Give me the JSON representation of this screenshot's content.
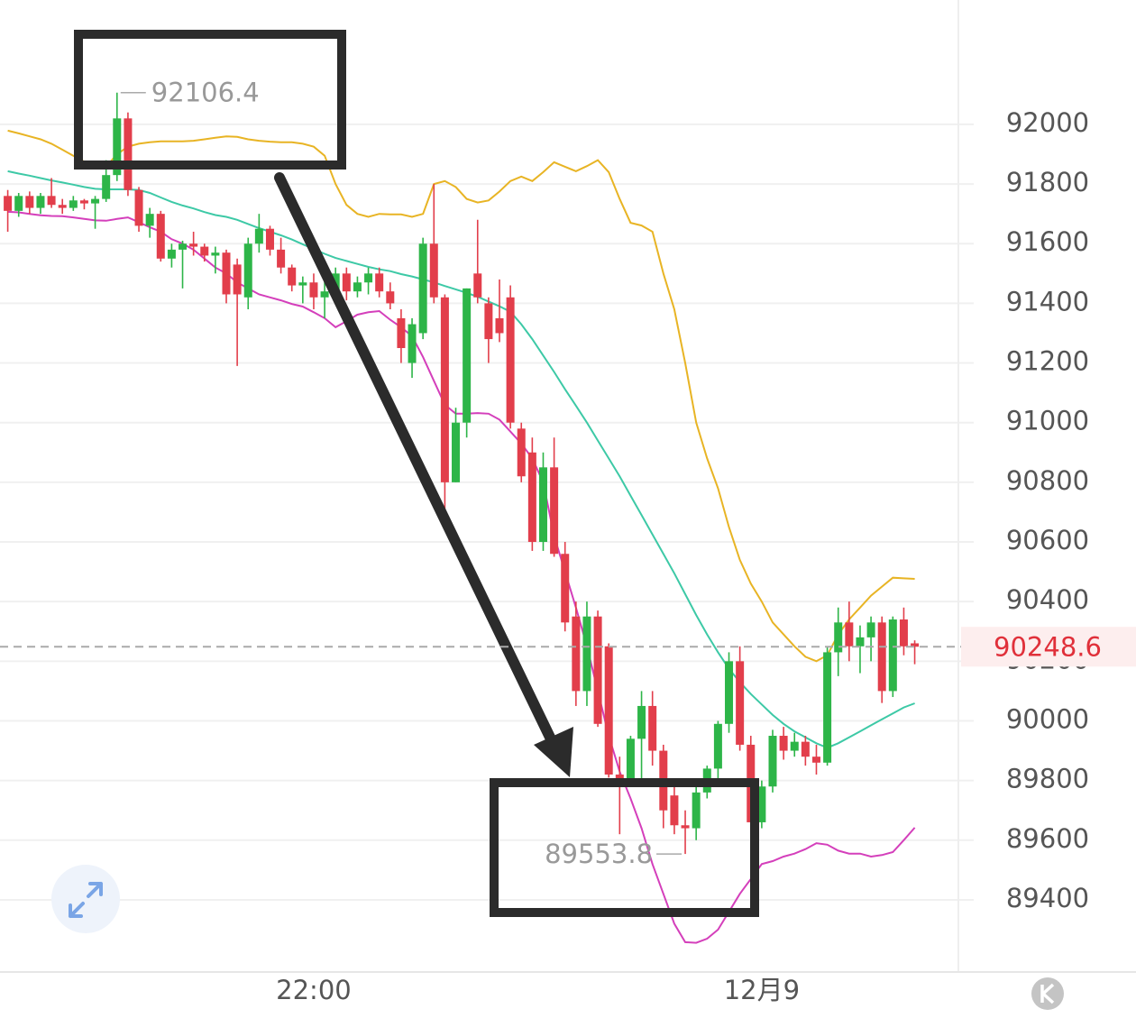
{
  "chart_data": {
    "type": "candlestick",
    "categories": [
      null,
      null,
      null,
      null,
      null,
      null,
      null,
      null,
      null,
      null,
      null,
      null,
      null,
      null,
      null,
      null,
      null,
      null,
      null,
      null,
      null,
      null,
      null,
      null,
      null,
      null,
      null,
      null,
      "22:00",
      null,
      null,
      null,
      null,
      null,
      null,
      null,
      null,
      null,
      null,
      null,
      null,
      null,
      null,
      null,
      null,
      null,
      null,
      null,
      null,
      null,
      null,
      null,
      null,
      null,
      null,
      null,
      null,
      null,
      null,
      null,
      null,
      null,
      null,
      null,
      null,
      null,
      null,
      null,
      null,
      "12月9",
      null,
      null,
      null,
      null,
      null,
      null,
      null,
      null,
      null,
      null,
      null,
      null,
      null,
      null
    ],
    "open": [
      91760,
      91710,
      91760,
      91720,
      91760,
      91730,
      91720,
      91745,
      91735,
      91750,
      91830,
      92020,
      91780,
      91660,
      91700,
      91550,
      91580,
      91600,
      91590,
      91560,
      91570,
      91530,
      91420,
      91600,
      91650,
      91580,
      91520,
      91460,
      91470,
      91420,
      91440,
      91500,
      91440,
      91470,
      91500,
      91440,
      91350,
      91200,
      91300,
      91600,
      91420,
      90800,
      91000,
      91500,
      91400,
      91350,
      91420,
      90980,
      90900,
      90600,
      90850,
      90560,
      90350,
      90100,
      90350,
      90250,
      89820,
      89800,
      89940,
      90050,
      89900,
      89750,
      89650,
      89640,
      89760,
      89840,
      89990,
      90200,
      89920,
      89660,
      89780,
      89950,
      89900,
      89930,
      89880,
      89860,
      90230,
      90330,
      90250,
      90280,
      90330,
      90100,
      90340,
      90260
    ],
    "high": [
      91780,
      91770,
      91775,
      91770,
      91820,
      91750,
      91760,
      91750,
      91760,
      91880,
      92106.4,
      92040,
      91790,
      91720,
      91710,
      91600,
      91610,
      91640,
      91600,
      91590,
      91580,
      91550,
      91620,
      91700,
      91660,
      91620,
      91530,
      91490,
      91500,
      91480,
      91520,
      91520,
      91490,
      91520,
      91520,
      91470,
      91380,
      91350,
      91620,
      91800,
      91430,
      91050,
      91450,
      91680,
      91420,
      91480,
      91460,
      91000,
      90950,
      90900,
      90950,
      90600,
      90400,
      90400,
      90370,
      90260,
      89880,
      89950,
      90100,
      90100,
      89920,
      89800,
      89700,
      89780,
      89850,
      90000,
      90230,
      90250,
      89950,
      89800,
      89970,
      89980,
      89960,
      89950,
      89920,
      90250,
      90380,
      90400,
      90320,
      90350,
      90350,
      90350,
      90380,
      90270
    ],
    "low": [
      91640,
      91690,
      91700,
      91700,
      91720,
      91700,
      91710,
      91715,
      91650,
      91740,
      91810,
      91760,
      91640,
      91620,
      91540,
      91520,
      91450,
      91560,
      91540,
      91500,
      91400,
      91190,
      91380,
      91570,
      91560,
      91500,
      91440,
      91400,
      91380,
      91350,
      91400,
      91410,
      91420,
      91430,
      91420,
      91380,
      91200,
      91150,
      91280,
      91400,
      90700,
      90800,
      90950,
      91400,
      91200,
      91270,
      90980,
      90800,
      90570,
      90570,
      90550,
      90300,
      90050,
      90050,
      89980,
      89810,
      89620,
      89780,
      89800,
      89850,
      89640,
      89620,
      89553.8,
      89600,
      89740,
      89800,
      89960,
      89900,
      89620,
      89640,
      89760,
      89870,
      89880,
      89850,
      89820,
      89850,
      90150,
      90200,
      90160,
      90200,
      90060,
      90080,
      90220,
      90190
    ],
    "close": [
      91710,
      91760,
      91720,
      91760,
      91730,
      91720,
      91745,
      91735,
      91750,
      91830,
      92020,
      91780,
      91660,
      91700,
      91550,
      91580,
      91600,
      91590,
      91560,
      91570,
      91430,
      91430,
      91600,
      91650,
      91580,
      91520,
      91460,
      91470,
      91420,
      91440,
      91500,
      91440,
      91470,
      91500,
      91440,
      91400,
      91250,
      91330,
      91600,
      91420,
      90800,
      91000,
      91450,
      91420,
      91280,
      91300,
      91000,
      90820,
      90600,
      90850,
      90560,
      90330,
      90100,
      90350,
      89990,
      89820,
      89800,
      89940,
      90050,
      89900,
      89700,
      89650,
      89640,
      89760,
      89840,
      89990,
      90200,
      89920,
      89660,
      89780,
      89950,
      89900,
      89930,
      89880,
      89860,
      90230,
      90330,
      90250,
      90280,
      90330,
      90100,
      90340,
      90250,
      90248.6
    ],
    "up_color": "#2db548",
    "down_color": "#e23e4b",
    "lines": [
      {
        "color": "#e8b424",
        "values": [
          91979,
          91970,
          91960,
          91950,
          91935,
          91915,
          91895,
          91875,
          91860,
          91858,
          91900,
          91925,
          91935,
          91940,
          91943,
          91943,
          91943,
          91945,
          91950,
          91955,
          91960,
          91958,
          91950,
          91945,
          91942,
          91940,
          91940,
          91935,
          91925,
          91895,
          91800,
          91730,
          91700,
          91690,
          91700,
          91698,
          91698,
          91690,
          91700,
          91800,
          91810,
          91790,
          91750,
          91738,
          91745,
          91775,
          91810,
          91825,
          91810,
          91840,
          91873,
          91858,
          91843,
          91860,
          91880,
          91840,
          91750,
          91670,
          91661,
          91640,
          91500,
          91380,
          91200,
          91000,
          90880,
          90780,
          90650,
          90540,
          90460,
          90400,
          90330,
          90290,
          90250,
          90215,
          90200,
          90220,
          90290,
          90340,
          90380,
          90420,
          90450,
          90480,
          90478,
          90476
        ]
      },
      {
        "color": "#3dc9a6",
        "values": [
          91843,
          91835,
          91828,
          91820,
          91812,
          91805,
          91798,
          91790,
          91784,
          91782,
          91782,
          91782,
          91780,
          91770,
          91755,
          91740,
          91728,
          91718,
          91706,
          91696,
          91690,
          91680,
          91666,
          91652,
          91640,
          91628,
          91614,
          91598,
          91582,
          91566,
          91552,
          91542,
          91532,
          91522,
          91514,
          91508,
          91498,
          91490,
          91480,
          91470,
          91458,
          91447,
          91435,
          91422,
          91406,
          91390,
          91372,
          91330,
          91280,
          91225,
          91170,
          91112,
          91057,
          91000,
          90940,
          90880,
          90820,
          90755,
          90690,
          90625,
          90560,
          90495,
          90425,
          90355,
          90290,
          90230,
          90175,
          90130,
          90090,
          90055,
          90020,
          89990,
          89965,
          89945,
          89925,
          89910,
          89925,
          89945,
          89965,
          89985,
          90005,
          90025,
          90045,
          90059
        ]
      },
      {
        "color": "#d43fbb",
        "values": [
          91707,
          91705,
          91700,
          91695,
          91693,
          91692,
          91688,
          91683,
          91678,
          91677,
          91683,
          91688,
          91672,
          91655,
          91640,
          91615,
          91600,
          91580,
          91550,
          91520,
          91500,
          91470,
          91450,
          91430,
          91420,
          91410,
          91398,
          91389,
          91370,
          91350,
          91320,
          91340,
          91362,
          91370,
          91374,
          91345,
          91320,
          91290,
          91220,
          91140,
          91060,
          91030,
          91030,
          91032,
          91030,
          91010,
          90970,
          90930,
          90880,
          90800,
          90620,
          90500,
          90380,
          90250,
          90100,
          89950,
          89830,
          89740,
          89640,
          89520,
          89420,
          89320,
          89258,
          89256,
          89270,
          89300,
          89360,
          89420,
          89470,
          89520,
          89530,
          89545,
          89555,
          89570,
          89590,
          89585,
          89565,
          89555,
          89555,
          89545,
          89550,
          89560,
          89600,
          89642
        ]
      }
    ],
    "ylim": [
      89158,
      92417
    ],
    "yticks": [
      89400,
      89600,
      89800,
      90000,
      90200,
      90400,
      90600,
      90800,
      91000,
      91200,
      91400,
      91600,
      91800,
      92000
    ],
    "grid": true
  }
}
